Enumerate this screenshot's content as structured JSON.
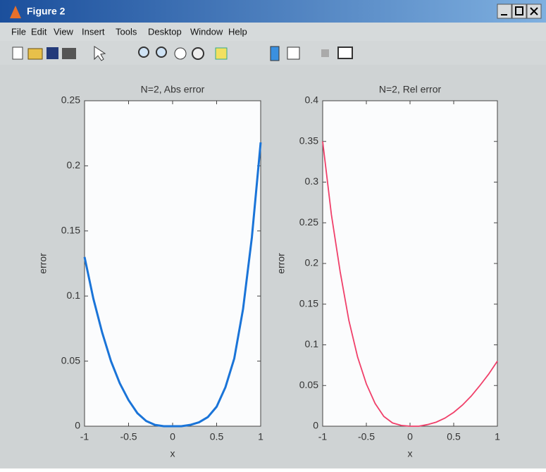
{
  "window": {
    "title": "Figure 2",
    "menus": [
      "File",
      "Edit",
      "View",
      "Insert",
      "Tools",
      "Desktop",
      "Window",
      "Help"
    ]
  },
  "chart_data": [
    {
      "type": "line",
      "title": "N=2, Abs error",
      "xlabel": "x",
      "ylabel": "error",
      "color": "#1a74d8",
      "x": [
        -1,
        -0.9,
        -0.8,
        -0.7,
        -0.6,
        -0.5,
        -0.4,
        -0.3,
        -0.2,
        -0.1,
        0,
        0.1,
        0.2,
        0.3,
        0.4,
        0.5,
        0.6,
        0.7,
        0.8,
        0.9,
        1
      ],
      "values": [
        0.13,
        0.098,
        0.072,
        0.05,
        0.033,
        0.02,
        0.01,
        0.004,
        0.001,
        0,
        0,
        0,
        0.001,
        0.003,
        0.007,
        0.015,
        0.03,
        0.052,
        0.09,
        0.145,
        0.218
      ],
      "xlim": [
        -1,
        1
      ],
      "ylim": [
        0,
        0.25
      ],
      "xticks": [
        -1,
        -0.5,
        0,
        0.5,
        1
      ],
      "yticks": [
        0,
        0.05,
        0.1,
        0.15,
        0.2,
        0.25
      ]
    },
    {
      "type": "line",
      "title": "N=2, Rel error",
      "xlabel": "x",
      "ylabel": "error",
      "color": "#f0406a",
      "x": [
        -1,
        -0.9,
        -0.8,
        -0.7,
        -0.6,
        -0.5,
        -0.4,
        -0.3,
        -0.2,
        -0.1,
        0,
        0.1,
        0.2,
        0.3,
        0.4,
        0.5,
        0.6,
        0.7,
        0.8,
        0.9,
        1
      ],
      "values": [
        0.35,
        0.26,
        0.19,
        0.13,
        0.085,
        0.052,
        0.028,
        0.012,
        0.004,
        0.001,
        0,
        0,
        0.002,
        0.005,
        0.01,
        0.017,
        0.026,
        0.037,
        0.05,
        0.064,
        0.08
      ],
      "xlim": [
        -1,
        1
      ],
      "ylim": [
        0,
        0.4
      ],
      "xticks": [
        -1,
        -0.5,
        0,
        0.5,
        1
      ],
      "yticks": [
        0,
        0.05,
        0.1,
        0.15,
        0.2,
        0.25,
        0.3,
        0.35,
        0.4
      ]
    }
  ]
}
